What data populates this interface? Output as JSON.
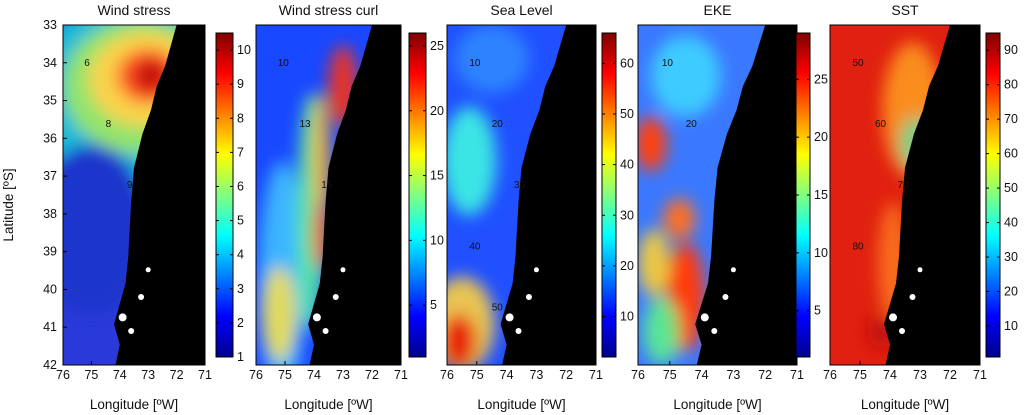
{
  "figure": {
    "ylabel": "Latitude [ºS]",
    "lat_ticks": [
      "33",
      "34",
      "35",
      "36",
      "37",
      "38",
      "39",
      "40",
      "41",
      "42"
    ],
    "lon_ticks": [
      "76",
      "75",
      "74",
      "73",
      "72",
      "71"
    ],
    "colors": {
      "land": "#000000",
      "frame": "#000000"
    }
  },
  "chart_data": [
    {
      "type": "heatmap",
      "title": "Wind stress",
      "xlabel": "Longitude [ºW]",
      "ylabel": "Latitude [ºS]",
      "xlim": [
        76,
        71
      ],
      "ylim": [
        42,
        33
      ],
      "colorbar": {
        "ticks": [
          1,
          2,
          3,
          4,
          5,
          6,
          7,
          8,
          9,
          10
        ],
        "range": [
          1,
          10.5
        ]
      },
      "contour_labels": [
        "6",
        "8",
        "9"
      ],
      "peak": {
        "value": 10,
        "lon": 73.4,
        "lat": 34.6
      }
    },
    {
      "type": "heatmap",
      "title": "Wind stress curl",
      "xlabel": "Longitude [ºW]",
      "ylabel": "",
      "xlim": [
        76,
        71
      ],
      "ylim": [
        42,
        33
      ],
      "colorbar": {
        "ticks": [
          5,
          10,
          15,
          20,
          25
        ],
        "range": [
          1,
          26
        ]
      },
      "contour_labels": [
        "10",
        "13",
        "15"
      ],
      "peak": {
        "value": 25,
        "lon": 73.6,
        "lat": 36.0
      }
    },
    {
      "type": "heatmap",
      "title": "Sea Level",
      "xlabel": "Longitude [ºW]",
      "ylabel": "",
      "xlim": [
        76,
        71
      ],
      "ylim": [
        42,
        33
      ],
      "colorbar": {
        "ticks": [
          10,
          20,
          30,
          40,
          50,
          60
        ],
        "range": [
          2,
          66
        ]
      },
      "contour_labels": [
        "10",
        "20",
        "30",
        "40",
        "50"
      ],
      "peak": {
        "value": 64,
        "lon": 75.7,
        "lat": 41.4
      }
    },
    {
      "type": "heatmap",
      "title": "EKE",
      "xlabel": "Longitude [ºW]",
      "ylabel": "",
      "xlim": [
        76,
        71
      ],
      "ylim": [
        42,
        33
      ],
      "colorbar": {
        "ticks": [
          5,
          10,
          15,
          20,
          25
        ],
        "range": [
          1,
          29
        ]
      },
      "contour_labels": [
        "10",
        "20"
      ],
      "peak": {
        "value": 27,
        "lon": 75.5,
        "lat": 36.2
      }
    },
    {
      "type": "heatmap",
      "title": "SST",
      "xlabel": "Longitude [ºW]",
      "ylabel": "",
      "xlim": [
        76,
        71
      ],
      "ylim": [
        42,
        33
      ],
      "colorbar": {
        "ticks": [
          10,
          20,
          30,
          40,
          50,
          60,
          70,
          80,
          90
        ],
        "range": [
          1,
          95
        ]
      },
      "contour_labels": [
        "50",
        "60",
        "70",
        "80"
      ],
      "peak": {
        "value": 90,
        "lon": 75.5,
        "lat": 38.0
      }
    }
  ]
}
